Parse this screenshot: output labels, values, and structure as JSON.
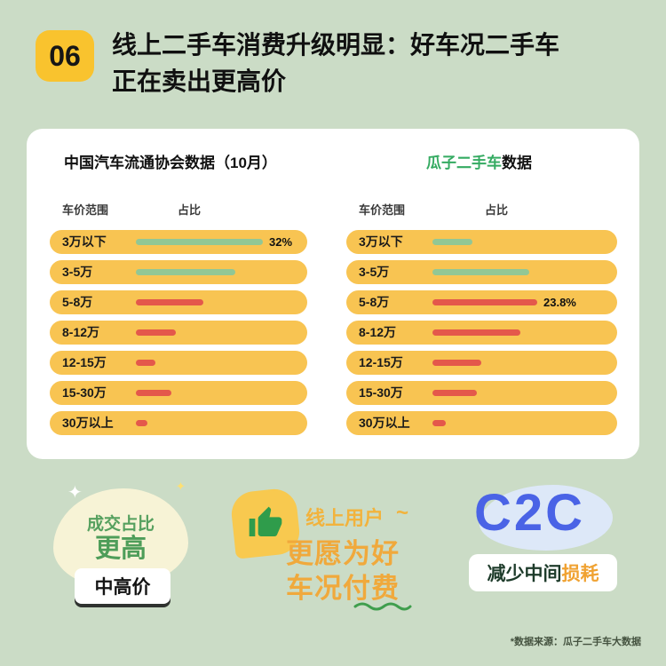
{
  "page": {
    "badge": "06",
    "title_line1": "线上二手车消费升级明显：好车况二手车",
    "title_line2": "正在卖出更高价",
    "footnote": "*数据来源：瓜子二手车大数据"
  },
  "theme": {
    "background": "#cbdcc6",
    "pill_yellow": "#f8c452",
    "badge_yellow": "#f9c32e",
    "green": "#92c795",
    "red": "#e4584b",
    "brand_green": "#35ab62",
    "accent_blue": "#4a63e6",
    "accent_orange": "#f0a93c"
  },
  "chart_data": [
    {
      "type": "bar",
      "title": "中国汽车流通协会数据（10月）",
      "col_headers": [
        "车价范围",
        "占比"
      ],
      "categories": [
        "3万以下",
        "3-5万",
        "5-8万",
        "8-12万",
        "12-15万",
        "15-30万",
        "30万以上"
      ],
      "values": [
        32,
        25,
        17,
        10,
        5,
        9,
        3
      ],
      "labels": [
        "32%",
        "",
        "",
        "",
        "",
        "",
        ""
      ],
      "colors": [
        "green",
        "green",
        "red",
        "red",
        "red",
        "red",
        "red"
      ],
      "xlim": [
        0,
        35
      ],
      "legend": "none",
      "grid": false
    },
    {
      "type": "bar",
      "title_highlight": "瓜子二手车",
      "title_rest": "数据",
      "col_headers": [
        "车价范围",
        "占比"
      ],
      "categories": [
        "3万以下",
        "3-5万",
        "5-8万",
        "8-12万",
        "12-15万",
        "15-30万",
        "30万以上"
      ],
      "values": [
        9,
        22,
        23.8,
        20,
        11,
        10,
        3
      ],
      "labels": [
        "",
        "",
        "23.8%",
        "",
        "",
        "",
        ""
      ],
      "colors": [
        "green",
        "green",
        "red",
        "red",
        "red",
        "red",
        "red"
      ],
      "xlim": [
        0,
        26
      ],
      "legend": "none",
      "grid": false
    }
  ],
  "bottom": {
    "left": {
      "line1": "成交占比",
      "line2": "更高",
      "tag": "中高价",
      "sparkle": "✦"
    },
    "middle": {
      "label": "线上用户",
      "squiggle": "~",
      "line1": "更愿为好",
      "line2": "车况付费"
    },
    "right": {
      "big": "C2C",
      "tag_dark": "减少中间",
      "tag_orange": "损耗"
    }
  }
}
